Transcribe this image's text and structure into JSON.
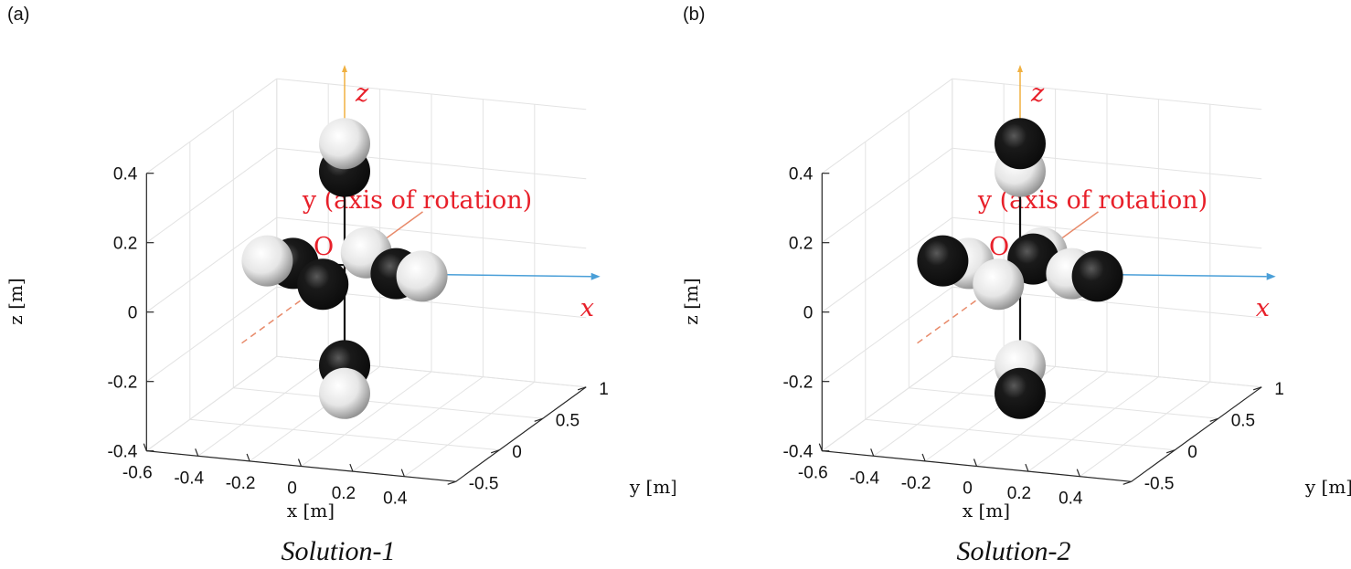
{
  "chart_data": [
    {
      "type": "scatter",
      "panel_label": "(a)",
      "caption": "Solution-1",
      "axis_labels": {
        "x": "x [m]",
        "y": "y [m]",
        "z": "z [m]"
      },
      "annotations": {
        "origin": "O",
        "x_axis": "x",
        "y_axis": "y (axis of rotation)",
        "z_axis": "z"
      },
      "xticks": [
        "-0.6",
        "-0.4",
        "-0.2",
        "0",
        "0.2",
        "0.4"
      ],
      "yticks": [
        "-0.5",
        "0",
        "0.5",
        "1"
      ],
      "zticks": [
        "-0.4",
        "-0.2",
        "0",
        "0.2",
        "0.4"
      ],
      "xlim": [
        -0.6,
        0.6
      ],
      "ylim": [
        -0.5,
        1.0
      ],
      "zlim": [
        -0.4,
        0.4
      ],
      "grid": true,
      "spheres": [
        {
          "x": 0,
          "y": 0,
          "z": 0.36,
          "color": "light"
        },
        {
          "x": 0,
          "y": 0,
          "z": 0.28,
          "color": "dark"
        },
        {
          "x": -0.3,
          "y": 0,
          "z": 0,
          "color": "light"
        },
        {
          "x": -0.2,
          "y": 0,
          "z": 0,
          "color": "dark"
        },
        {
          "x": 0.2,
          "y": 0,
          "z": 0,
          "color": "dark"
        },
        {
          "x": 0.3,
          "y": 0,
          "z": 0,
          "color": "light"
        },
        {
          "x": 0,
          "y": 0.25,
          "z": 0,
          "color": "light"
        },
        {
          "x": 0,
          "y": -0.25,
          "z": 0,
          "color": "dark"
        },
        {
          "x": 0,
          "y": 0,
          "z": -0.28,
          "color": "dark"
        },
        {
          "x": 0,
          "y": 0,
          "z": -0.36,
          "color": "light"
        }
      ]
    },
    {
      "type": "scatter",
      "panel_label": "(b)",
      "caption": "Solution-2",
      "axis_labels": {
        "x": "x [m]",
        "y": "y [m]",
        "z": "z [m]"
      },
      "annotations": {
        "origin": "O",
        "x_axis": "x",
        "y_axis": "y (axis of rotation)",
        "z_axis": "z"
      },
      "xticks": [
        "-0.6",
        "-0.4",
        "-0.2",
        "0",
        "0.2",
        "0.4"
      ],
      "yticks": [
        "-0.5",
        "0",
        "0.5",
        "1"
      ],
      "zticks": [
        "-0.4",
        "-0.2",
        "0",
        "0.2",
        "0.4"
      ],
      "xlim": [
        -0.6,
        0.6
      ],
      "ylim": [
        -0.5,
        1.0
      ],
      "zlim": [
        -0.4,
        0.4
      ],
      "grid": true,
      "spheres": [
        {
          "x": 0,
          "y": 0,
          "z": 0.36,
          "color": "dark"
        },
        {
          "x": 0,
          "y": 0,
          "z": 0.28,
          "color": "light"
        },
        {
          "x": -0.3,
          "y": 0,
          "z": 0,
          "color": "dark"
        },
        {
          "x": -0.2,
          "y": 0,
          "z": 0,
          "color": "light"
        },
        {
          "x": 0.2,
          "y": 0,
          "z": 0,
          "color": "light"
        },
        {
          "x": 0.3,
          "y": 0,
          "z": 0,
          "color": "dark"
        },
        {
          "x": 0,
          "y": 0.25,
          "z": 0,
          "color": "light"
        },
        {
          "x": 0,
          "y": 0.15,
          "z": 0,
          "color": "dark"
        },
        {
          "x": 0,
          "y": -0.25,
          "z": 0,
          "color": "light"
        },
        {
          "x": 0,
          "y": 0,
          "z": -0.28,
          "color": "light"
        },
        {
          "x": 0,
          "y": 0,
          "z": -0.36,
          "color": "dark"
        }
      ]
    }
  ],
  "colors": {
    "annotation": "#e8202a",
    "x_axis_line": "#4a9fd8",
    "z_axis_line": "#f0b040",
    "y_axis_line": "#e88a6a",
    "sphere_dark": "#0a0a0a",
    "sphere_light": "#e6e6e6"
  }
}
